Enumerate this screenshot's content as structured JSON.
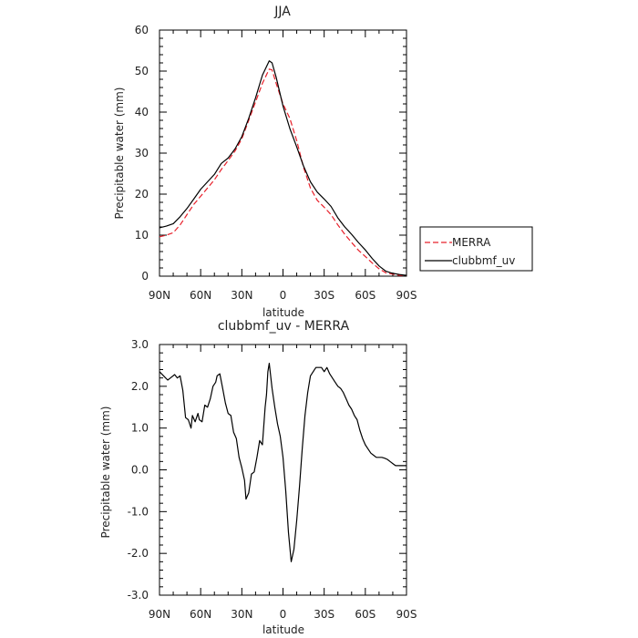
{
  "chart_data": [
    {
      "type": "line",
      "title": "JJA",
      "xlabel": "latitude",
      "ylabel": "Precipitable water (mm)",
      "xlim": [
        90,
        -90
      ],
      "ylim": [
        0,
        60
      ],
      "x_ticks": [
        90,
        60,
        30,
        0,
        -30,
        -60,
        -90
      ],
      "x_tick_labels": [
        "90N",
        "60N",
        "30N",
        "0",
        "30S",
        "60S",
        "90S"
      ],
      "y_ticks": [
        0,
        10,
        20,
        30,
        40,
        50,
        60
      ],
      "y_tick_labels": [
        "0",
        "10",
        "20",
        "30",
        "40",
        "50",
        "60"
      ],
      "legend_position": "outside-right",
      "series": [
        {
          "name": "MERRA",
          "color": "#e8202a",
          "dash": "dashed",
          "x": [
            90,
            85,
            80,
            75,
            70,
            65,
            60,
            55,
            50,
            45,
            40,
            35,
            30,
            25,
            20,
            15,
            10,
            8,
            5,
            0,
            -5,
            -10,
            -15,
            -20,
            -25,
            -30,
            -35,
            -40,
            -45,
            -50,
            -55,
            -60,
            -65,
            -70,
            -75,
            -80,
            -85,
            -90
          ],
          "values": [
            9.6,
            10.0,
            10.6,
            12.5,
            15.0,
            17.5,
            19.5,
            21.5,
            23.5,
            26.0,
            28.2,
            30.5,
            33.5,
            38.0,
            42.5,
            47.0,
            50.5,
            50.3,
            47.0,
            42.0,
            38.5,
            33.0,
            26.5,
            21.5,
            18.5,
            16.8,
            15.0,
            12.5,
            10.2,
            8.2,
            6.3,
            4.8,
            3.2,
            1.8,
            0.8,
            0.5,
            0.2,
            0.2
          ]
        },
        {
          "name": "clubbmf_uv",
          "color": "#000000",
          "dash": "solid",
          "x": [
            90,
            85,
            80,
            75,
            70,
            65,
            60,
            55,
            50,
            45,
            40,
            35,
            30,
            25,
            20,
            15,
            10,
            8,
            5,
            0,
            -5,
            -10,
            -15,
            -20,
            -25,
            -30,
            -35,
            -40,
            -45,
            -50,
            -55,
            -60,
            -65,
            -70,
            -75,
            -80,
            -85,
            -90
          ],
          "values": [
            11.8,
            12.2,
            12.8,
            14.5,
            16.5,
            18.8,
            21.2,
            23.0,
            24.8,
            27.5,
            28.8,
            31.0,
            34.0,
            38.5,
            43.5,
            49.0,
            52.5,
            52.0,
            48.5,
            41.5,
            36.0,
            31.5,
            26.8,
            23.0,
            20.5,
            18.8,
            17.0,
            14.2,
            12.0,
            10.2,
            8.2,
            6.4,
            4.3,
            2.5,
            1.2,
            0.7,
            0.4,
            0.2
          ]
        }
      ]
    },
    {
      "type": "line",
      "title": "clubbmf_uv - MERRA",
      "xlabel": "latitude",
      "ylabel": "Precipitable water (mm)",
      "xlim": [
        90,
        -90
      ],
      "ylim": [
        -3.0,
        3.0
      ],
      "x_ticks": [
        90,
        60,
        30,
        0,
        -30,
        -60,
        -90
      ],
      "x_tick_labels": [
        "90N",
        "60N",
        "30N",
        "0",
        "30S",
        "60S",
        "90S"
      ],
      "y_ticks": [
        -3.0,
        -2.0,
        -1.0,
        0.0,
        1.0,
        2.0,
        3.0
      ],
      "y_tick_labels": [
        "-3.0",
        "-2.0",
        "-1.0",
        "0.0",
        "1.0",
        "2.0",
        "3.0"
      ],
      "series": [
        {
          "color": "#000000",
          "dash": "solid",
          "x": [
            90,
            87,
            84,
            82,
            79,
            77,
            75,
            73,
            71,
            69,
            67,
            66,
            64,
            62,
            61,
            59,
            57,
            55,
            53,
            51,
            49,
            48,
            46,
            44,
            42,
            40,
            38,
            36,
            34,
            32,
            30,
            28,
            27,
            25,
            23,
            21,
            19,
            17,
            15,
            13,
            12,
            11,
            10,
            8,
            6,
            4,
            2,
            0,
            -2,
            -4,
            -6,
            -8,
            -10,
            -12,
            -14,
            -16,
            -18,
            -20,
            -22,
            -24,
            -26,
            -28,
            -30,
            -32,
            -34,
            -36,
            -38,
            -40,
            -42,
            -44,
            -46,
            -48,
            -50,
            -52,
            -54,
            -56,
            -58,
            -60,
            -62,
            -64,
            -66,
            -68,
            -70,
            -72,
            -74,
            -76,
            -78,
            -80,
            -82,
            -84,
            -86,
            -88,
            -90
          ],
          "values": [
            2.35,
            2.25,
            2.15,
            2.2,
            2.28,
            2.2,
            2.25,
            1.9,
            1.25,
            1.2,
            1.0,
            1.3,
            1.15,
            1.35,
            1.2,
            1.15,
            1.55,
            1.5,
            1.7,
            2.0,
            2.1,
            2.25,
            2.3,
            1.95,
            1.6,
            1.35,
            1.3,
            0.9,
            0.75,
            0.3,
            0.05,
            -0.25,
            -0.7,
            -0.55,
            -0.1,
            -0.05,
            0.3,
            0.7,
            0.6,
            1.5,
            1.8,
            2.35,
            2.55,
            1.95,
            1.5,
            1.1,
            0.8,
            0.3,
            -0.5,
            -1.5,
            -2.2,
            -1.9,
            -1.2,
            -0.4,
            0.5,
            1.3,
            1.85,
            2.25,
            2.35,
            2.45,
            2.45,
            2.45,
            2.35,
            2.45,
            2.3,
            2.2,
            2.1,
            2.0,
            1.95,
            1.85,
            1.7,
            1.55,
            1.45,
            1.3,
            1.2,
            0.95,
            0.75,
            0.6,
            0.5,
            0.4,
            0.35,
            0.3,
            0.3,
            0.3,
            0.28,
            0.25,
            0.2,
            0.15,
            0.1,
            0.1,
            0.1,
            0.1,
            0.1
          ]
        }
      ]
    }
  ]
}
